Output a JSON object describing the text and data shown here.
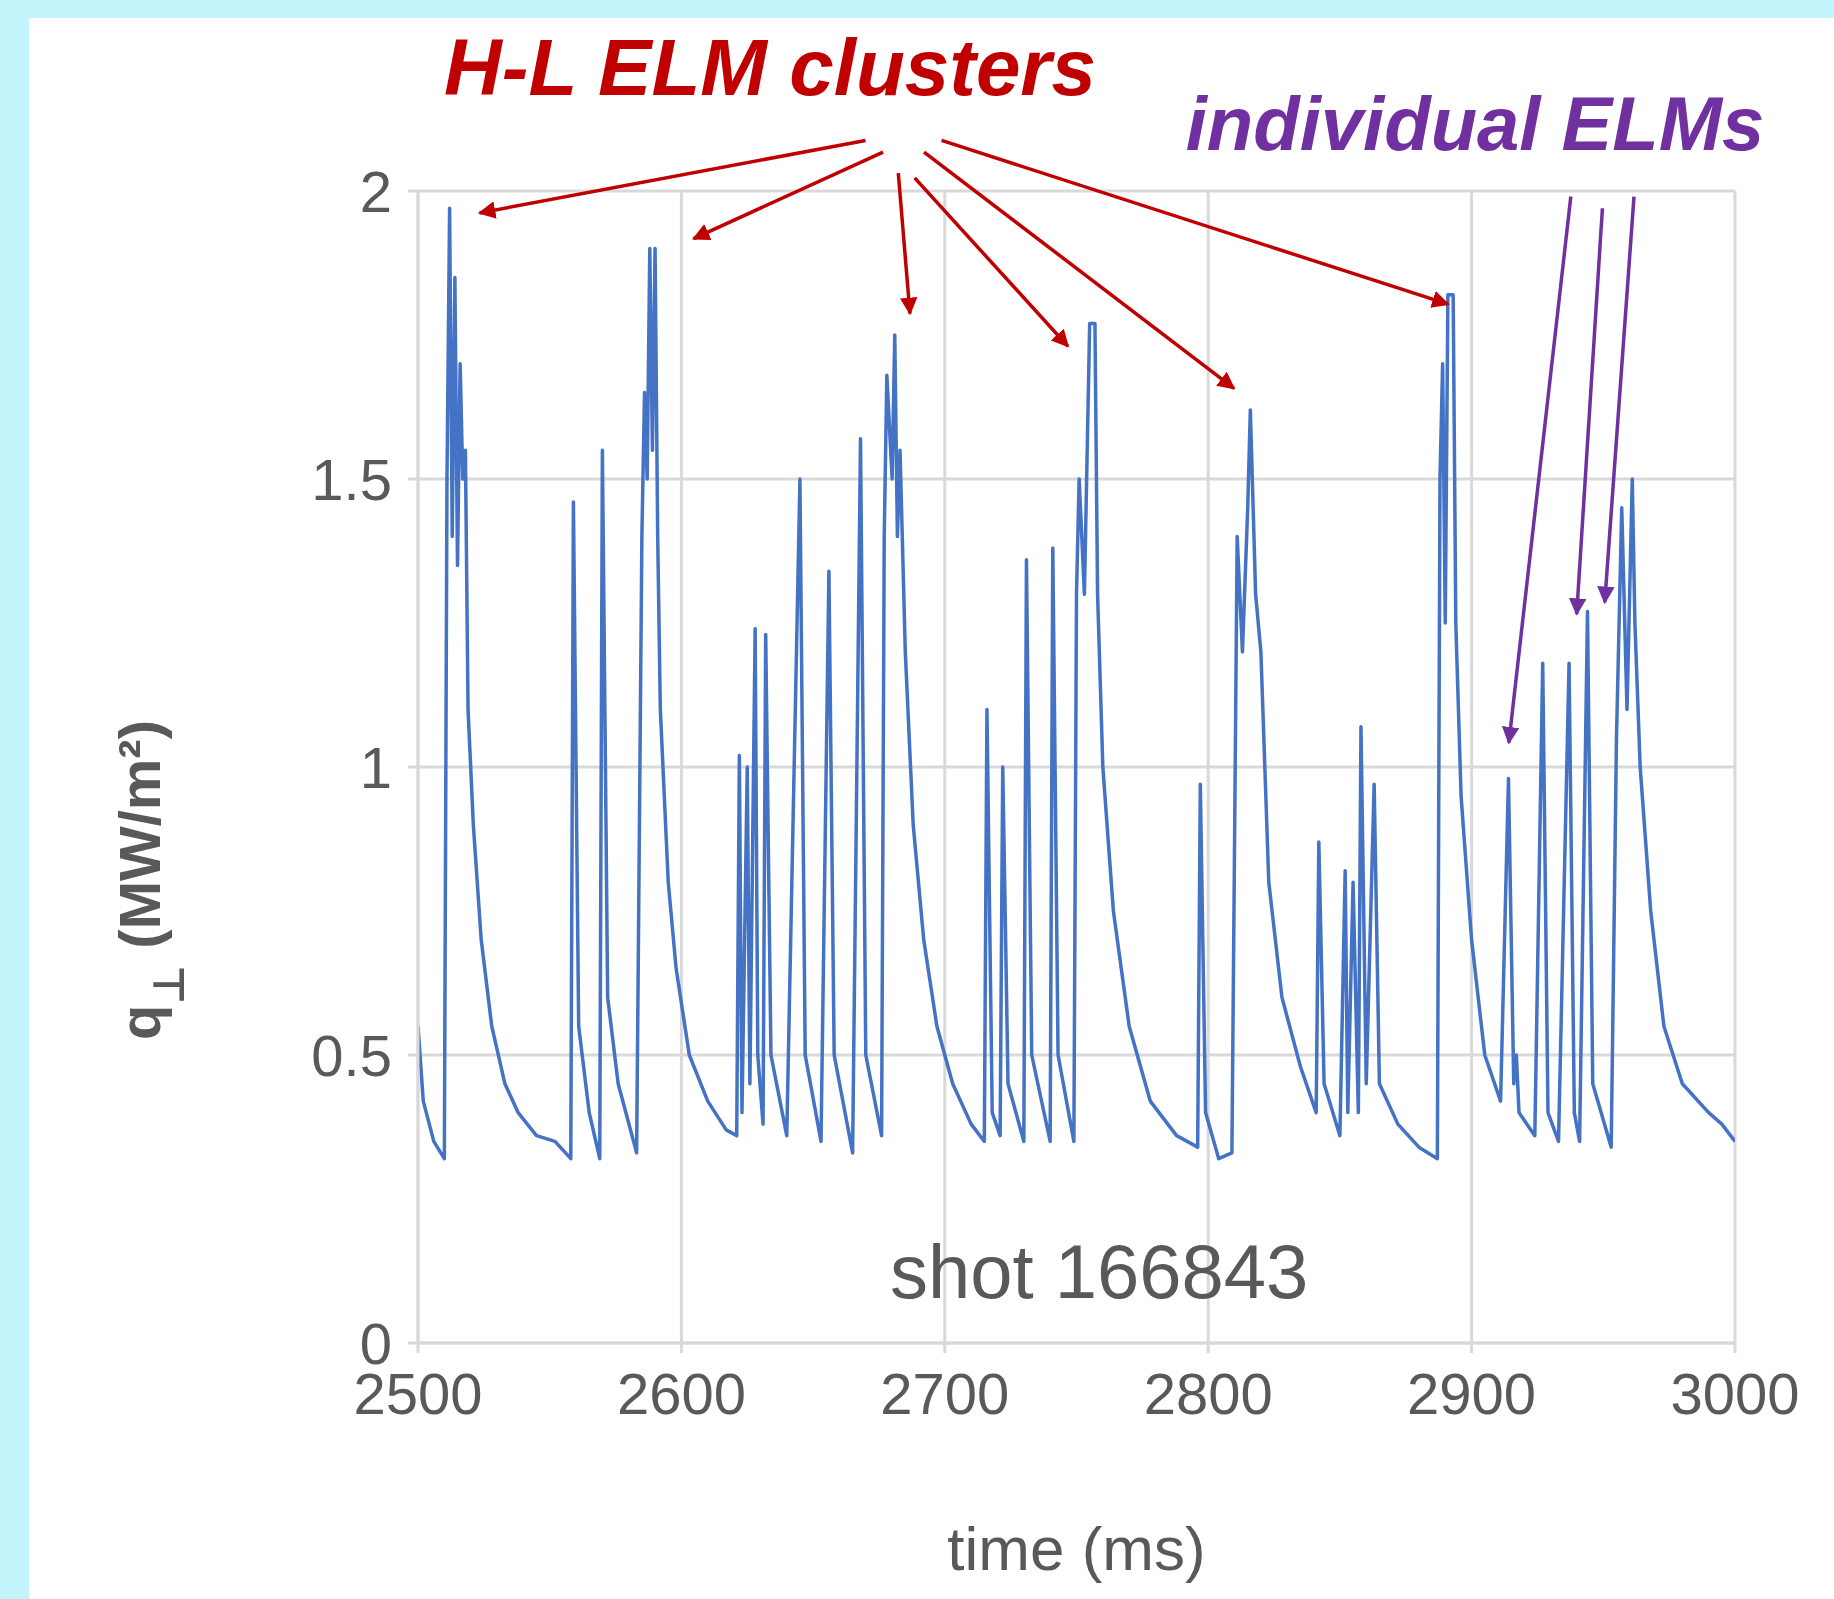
{
  "chart_data": {
    "type": "line",
    "xlabel": "time (ms)",
    "ylabel": "q$_{⊥}$ (MW/m²)",
    "annotations": [
      "H-L ELM clusters",
      "individual ELMs",
      "shot 166843"
    ],
    "xlim": [
      2500,
      3000
    ],
    "xticks": [
      2500,
      2600,
      2700,
      2800,
      2900,
      3000
    ],
    "ylim": [
      0,
      2
    ],
    "yticks": [
      0,
      0.5,
      1,
      1.5,
      2
    ],
    "grid": true,
    "legend": false,
    "marker": "none",
    "line_style": "solid",
    "x": [
      2500,
      2502,
      2506,
      2510,
      2511,
      2512,
      2513,
      2514,
      2515,
      2516,
      2517,
      2518,
      2519,
      2521,
      2524,
      2528,
      2533,
      2538,
      2545,
      2552,
      2558,
      2559,
      2561,
      2565,
      2569,
      2570,
      2572,
      2576,
      2583,
      2585,
      2586,
      2587,
      2588,
      2589,
      2590,
      2591,
      2592,
      2595,
      2598,
      2603,
      2610,
      2617,
      2621,
      2622,
      2623,
      2625,
      2626,
      2628,
      2629,
      2631,
      2632,
      2634,
      2640,
      2645,
      2647,
      2653,
      2656,
      2658,
      2665,
      2668,
      2670,
      2676,
      2677,
      2678,
      2680,
      2681,
      2682,
      2683,
      2685,
      2688,
      2692,
      2697,
      2703,
      2710,
      2715,
      2716,
      2718,
      2721,
      2722,
      2724,
      2730,
      2731,
      2733,
      2740,
      2741,
      2743,
      2749,
      2750,
      2751,
      2753,
      2755,
      2757,
      2758,
      2760,
      2764,
      2770,
      2778,
      2788,
      2796,
      2797,
      2799,
      2804,
      2809,
      2811,
      2813,
      2815,
      2816,
      2818,
      2820,
      2823,
      2828,
      2835,
      2841,
      2842,
      2844,
      2850,
      2852,
      2853,
      2855,
      2857,
      2858,
      2860,
      2863,
      2865,
      2872,
      2880,
      2887,
      2888,
      2889,
      2890,
      2891,
      2893,
      2894,
      2896,
      2900,
      2905,
      2911,
      2914,
      2916,
      2917,
      2918,
      2924,
      2927,
      2929,
      2933,
      2937,
      2939,
      2941,
      2944,
      2946,
      2953,
      2955,
      2957,
      2959,
      2961,
      2962,
      2964,
      2968,
      2973,
      2980,
      2990,
      2995,
      3000
    ],
    "series": [
      {
        "color": "#4472c4",
        "values": [
          0.55,
          0.42,
          0.35,
          0.32,
          1.5,
          1.97,
          1.4,
          1.85,
          1.35,
          1.7,
          1.5,
          1.55,
          1.1,
          0.9,
          0.7,
          0.55,
          0.45,
          0.4,
          0.36,
          0.35,
          0.32,
          1.46,
          0.55,
          0.4,
          0.32,
          1.55,
          0.6,
          0.45,
          0.33,
          1.4,
          1.65,
          1.5,
          1.9,
          1.55,
          1.9,
          1.4,
          1.1,
          0.8,
          0.65,
          0.5,
          0.42,
          0.37,
          0.36,
          1.02,
          0.4,
          1.0,
          0.45,
          1.24,
          0.5,
          0.38,
          1.23,
          0.5,
          0.36,
          1.5,
          0.5,
          0.35,
          1.34,
          0.5,
          0.33,
          1.57,
          0.5,
          0.36,
          1.4,
          1.68,
          1.5,
          1.75,
          1.4,
          1.55,
          1.2,
          0.9,
          0.7,
          0.55,
          0.45,
          0.38,
          0.35,
          1.1,
          0.4,
          0.36,
          1.0,
          0.45,
          0.35,
          1.36,
          0.5,
          0.35,
          1.38,
          0.5,
          0.35,
          1.3,
          1.5,
          1.3,
          1.77,
          1.77,
          1.3,
          1.0,
          0.75,
          0.55,
          0.42,
          0.36,
          0.34,
          0.97,
          0.4,
          0.32,
          0.33,
          1.4,
          1.2,
          1.45,
          1.62,
          1.3,
          1.2,
          0.8,
          0.6,
          0.48,
          0.4,
          0.87,
          0.45,
          0.36,
          0.82,
          0.4,
          0.8,
          0.4,
          1.07,
          0.45,
          0.97,
          0.45,
          0.38,
          0.34,
          0.32,
          1.5,
          1.7,
          1.25,
          1.82,
          1.82,
          1.25,
          0.95,
          0.7,
          0.5,
          0.42,
          0.98,
          0.45,
          0.5,
          0.4,
          0.36,
          1.18,
          0.4,
          0.35,
          1.18,
          0.4,
          0.35,
          1.27,
          0.45,
          0.34,
          1.05,
          1.45,
          1.1,
          1.5,
          1.25,
          1.0,
          0.75,
          0.55,
          0.45,
          0.4,
          0.38,
          0.35
        ]
      }
    ]
  }
}
